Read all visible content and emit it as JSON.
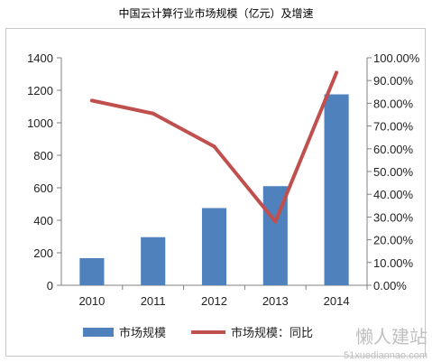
{
  "title": "中国云计算行业市场规模（亿元）及增速",
  "watermark": {
    "text": "懒人建站",
    "url": "51xuediannao.com"
  },
  "chart_data": {
    "type": "bar",
    "categories": [
      "2010",
      "2011",
      "2012",
      "2013",
      "2014"
    ],
    "series": [
      {
        "name": "市场规模",
        "type": "bar",
        "axis": "left",
        "color": "#4F81BD",
        "values": [
          167,
          296,
          475,
          610,
          1175
        ]
      },
      {
        "name": "市场规模：同比",
        "type": "line",
        "axis": "right",
        "color": "#C0504D",
        "values": [
          81.2,
          75.5,
          61.0,
          28.0,
          93.5
        ]
      }
    ],
    "y_left": {
      "min": 0,
      "max": 1400,
      "step": 200,
      "ticks": [
        "0",
        "200",
        "400",
        "600",
        "800",
        "1000",
        "1200",
        "1400"
      ]
    },
    "y_right": {
      "min": 0,
      "max": 100,
      "step": 10,
      "ticks": [
        "0.00%",
        "10.00%",
        "20.00%",
        "30.00%",
        "40.00%",
        "50.00%",
        "60.00%",
        "70.00%",
        "80.00%",
        "90.00%",
        "100.00%"
      ]
    },
    "grid": false,
    "legend": "bottom",
    "legend_labels": [
      "市场规模",
      "市场规模：同比"
    ]
  }
}
